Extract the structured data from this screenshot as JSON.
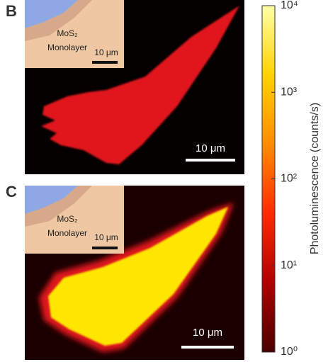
{
  "panels": [
    {
      "label": "B",
      "inset": {
        "material": "MoS₂",
        "layer": "Monolayer",
        "scale_bar": "10 μm"
      },
      "scale_bar": "10 μm"
    },
    {
      "label": "C",
      "inset": {
        "material": "MoS₂",
        "layer": "Monolayer",
        "scale_bar": "10 μm"
      },
      "scale_bar": "10 μm"
    }
  ],
  "colorbar": {
    "label": "Photoluminescence (counts/s)",
    "log_scale": true,
    "lim": [
      1,
      10000
    ],
    "ticks": [
      {
        "value": 1,
        "label": "10⁰"
      },
      {
        "value": 10,
        "label": "10¹"
      },
      {
        "value": 100,
        "label": "10²"
      },
      {
        "value": 1000,
        "label": "10³"
      },
      {
        "value": 10000,
        "label": "10⁴"
      }
    ],
    "colors": [
      "#4a0000",
      "#b00000",
      "#ff2a00",
      "#ff8c00",
      "#ffd200",
      "#ffffa8"
    ]
  }
}
